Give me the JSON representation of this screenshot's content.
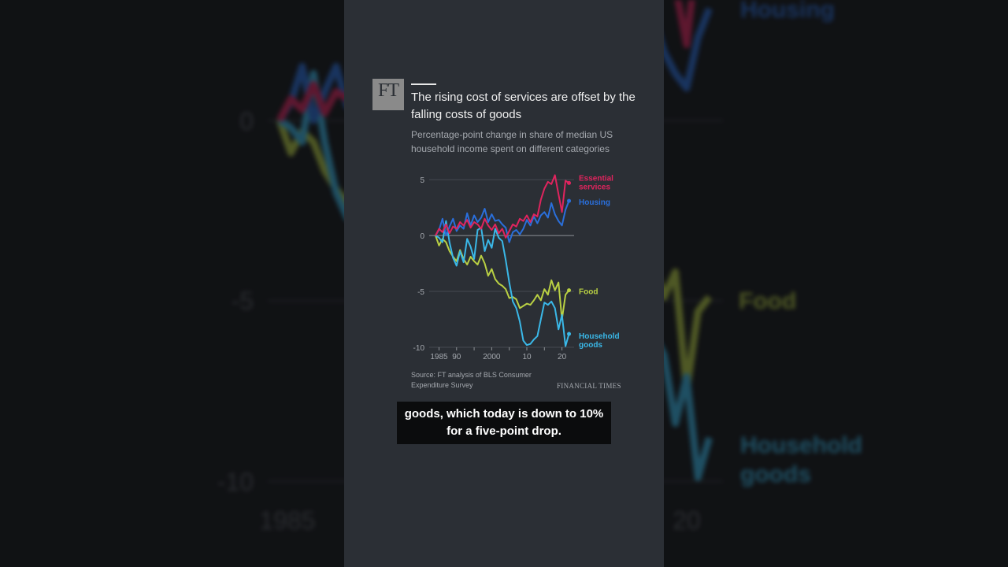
{
  "video": {
    "logo_text": "FT",
    "brand": "FINANCIAL TIMES",
    "caption_line1": "goods, which today is down to 10%",
    "caption_line2": "for a five-point drop."
  },
  "colors": {
    "essential_services": "#e0245e",
    "housing": "#2a6fdb",
    "food": "#b9d043",
    "household_goods": "#3ab8e8",
    "panel_bg": "#2b2f35",
    "page_bg": "#121416"
  },
  "chart_data": {
    "type": "line",
    "title": "The rising cost of services are offset by the falling costs of goods",
    "subtitle": "Percentage-point change in share of median US household income spent on different categories",
    "source": "Source: FT analysis of BLS Consumer Expenditure Survey",
    "x_tick_labels": [
      "1985",
      "90",
      "2000",
      "10",
      "20"
    ],
    "x_tick_values": [
      1985,
      1990,
      2000,
      2010,
      2020
    ],
    "y_ticks": [
      5,
      0,
      -5,
      -10
    ],
    "y_tick_labels": [
      "5",
      "0",
      "-5",
      "-10"
    ],
    "ylim": [
      -10,
      5.5
    ],
    "xlim": [
      1984,
      2023
    ],
    "grid": "horizontal",
    "x": [
      1984,
      1985,
      1986,
      1987,
      1988,
      1989,
      1990,
      1991,
      1992,
      1993,
      1994,
      1995,
      1996,
      1997,
      1998,
      1999,
      2000,
      2001,
      2002,
      2003,
      2004,
      2005,
      2006,
      2007,
      2008,
      2009,
      2010,
      2011,
      2012,
      2013,
      2014,
      2015,
      2016,
      2017,
      2018,
      2019,
      2020,
      2021,
      2022
    ],
    "series": [
      {
        "name": "Essential services",
        "label_line1": "Essential",
        "label_line2": "services",
        "values": [
          0,
          0.6,
          0.3,
          1.0,
          0.2,
          0.8,
          0.6,
          1.2,
          0.9,
          1.4,
          0.7,
          1.2,
          1.0,
          0.6,
          1.5,
          0.9,
          0.5,
          1.0,
          0.2,
          0.6,
          -0.2,
          0.4,
          1.0,
          0.8,
          1.5,
          1.3,
          1.8,
          1.2,
          1.9,
          1.7,
          3.2,
          4.2,
          4.8,
          4.6,
          5.4,
          3.7,
          2.1,
          4.9,
          4.7
        ]
      },
      {
        "name": "Housing",
        "label_line1": "Housing",
        "label_line2": "",
        "values": [
          0,
          0.5,
          1.5,
          0,
          0.8,
          1.5,
          0.4,
          0.9,
          0.6,
          2.0,
          0.9,
          1.8,
          1.2,
          1.6,
          2.4,
          1.2,
          1.9,
          1.3,
          1.4,
          1.0,
          0.7,
          -0.6,
          0.3,
          0.5,
          0.1,
          0.6,
          1.4,
          0.9,
          1.7,
          1.1,
          1.8,
          2.1,
          1.6,
          2.9,
          1.9,
          1.3,
          0.9,
          2.3,
          3.1
        ]
      },
      {
        "name": "Food",
        "label_line1": "Food",
        "label_line2": "",
        "values": [
          0,
          -0.9,
          -0.3,
          -0.6,
          -1.4,
          -1.9,
          -2.3,
          -1.3,
          -2.1,
          -2.6,
          -1.9,
          -2.3,
          -2.6,
          -1.8,
          -2.5,
          -3.6,
          -3.0,
          -3.9,
          -4.3,
          -4.5,
          -4.8,
          -5.6,
          -5.5,
          -5.7,
          -6.5,
          -6.3,
          -6.1,
          -6.2,
          -5.8,
          -5.3,
          -5.8,
          -4.8,
          -5.3,
          -4.0,
          -4.9,
          -4.2,
          -7.5,
          -5.3,
          -4.9
        ]
      },
      {
        "name": "Household goods",
        "label_line1": "Household",
        "label_line2": "goods",
        "values": [
          0,
          -0.2,
          -0.6,
          1.3,
          -0.6,
          -2.0,
          -2.7,
          -1.4,
          -2.4,
          -0.3,
          -1.0,
          -2.1,
          0.5,
          0.7,
          -1.4,
          -0.4,
          -1.1,
          0.6,
          -0.2,
          -0.5,
          -2.2,
          -4.2,
          -5.9,
          -6.5,
          -7.7,
          -9.4,
          -9.8,
          -9.7,
          -9.3,
          -9.0,
          -7.5,
          -6.0,
          -6.2,
          -5.9,
          -6.5,
          -8.4,
          -7.1,
          -9.9,
          -8.8
        ]
      }
    ]
  }
}
